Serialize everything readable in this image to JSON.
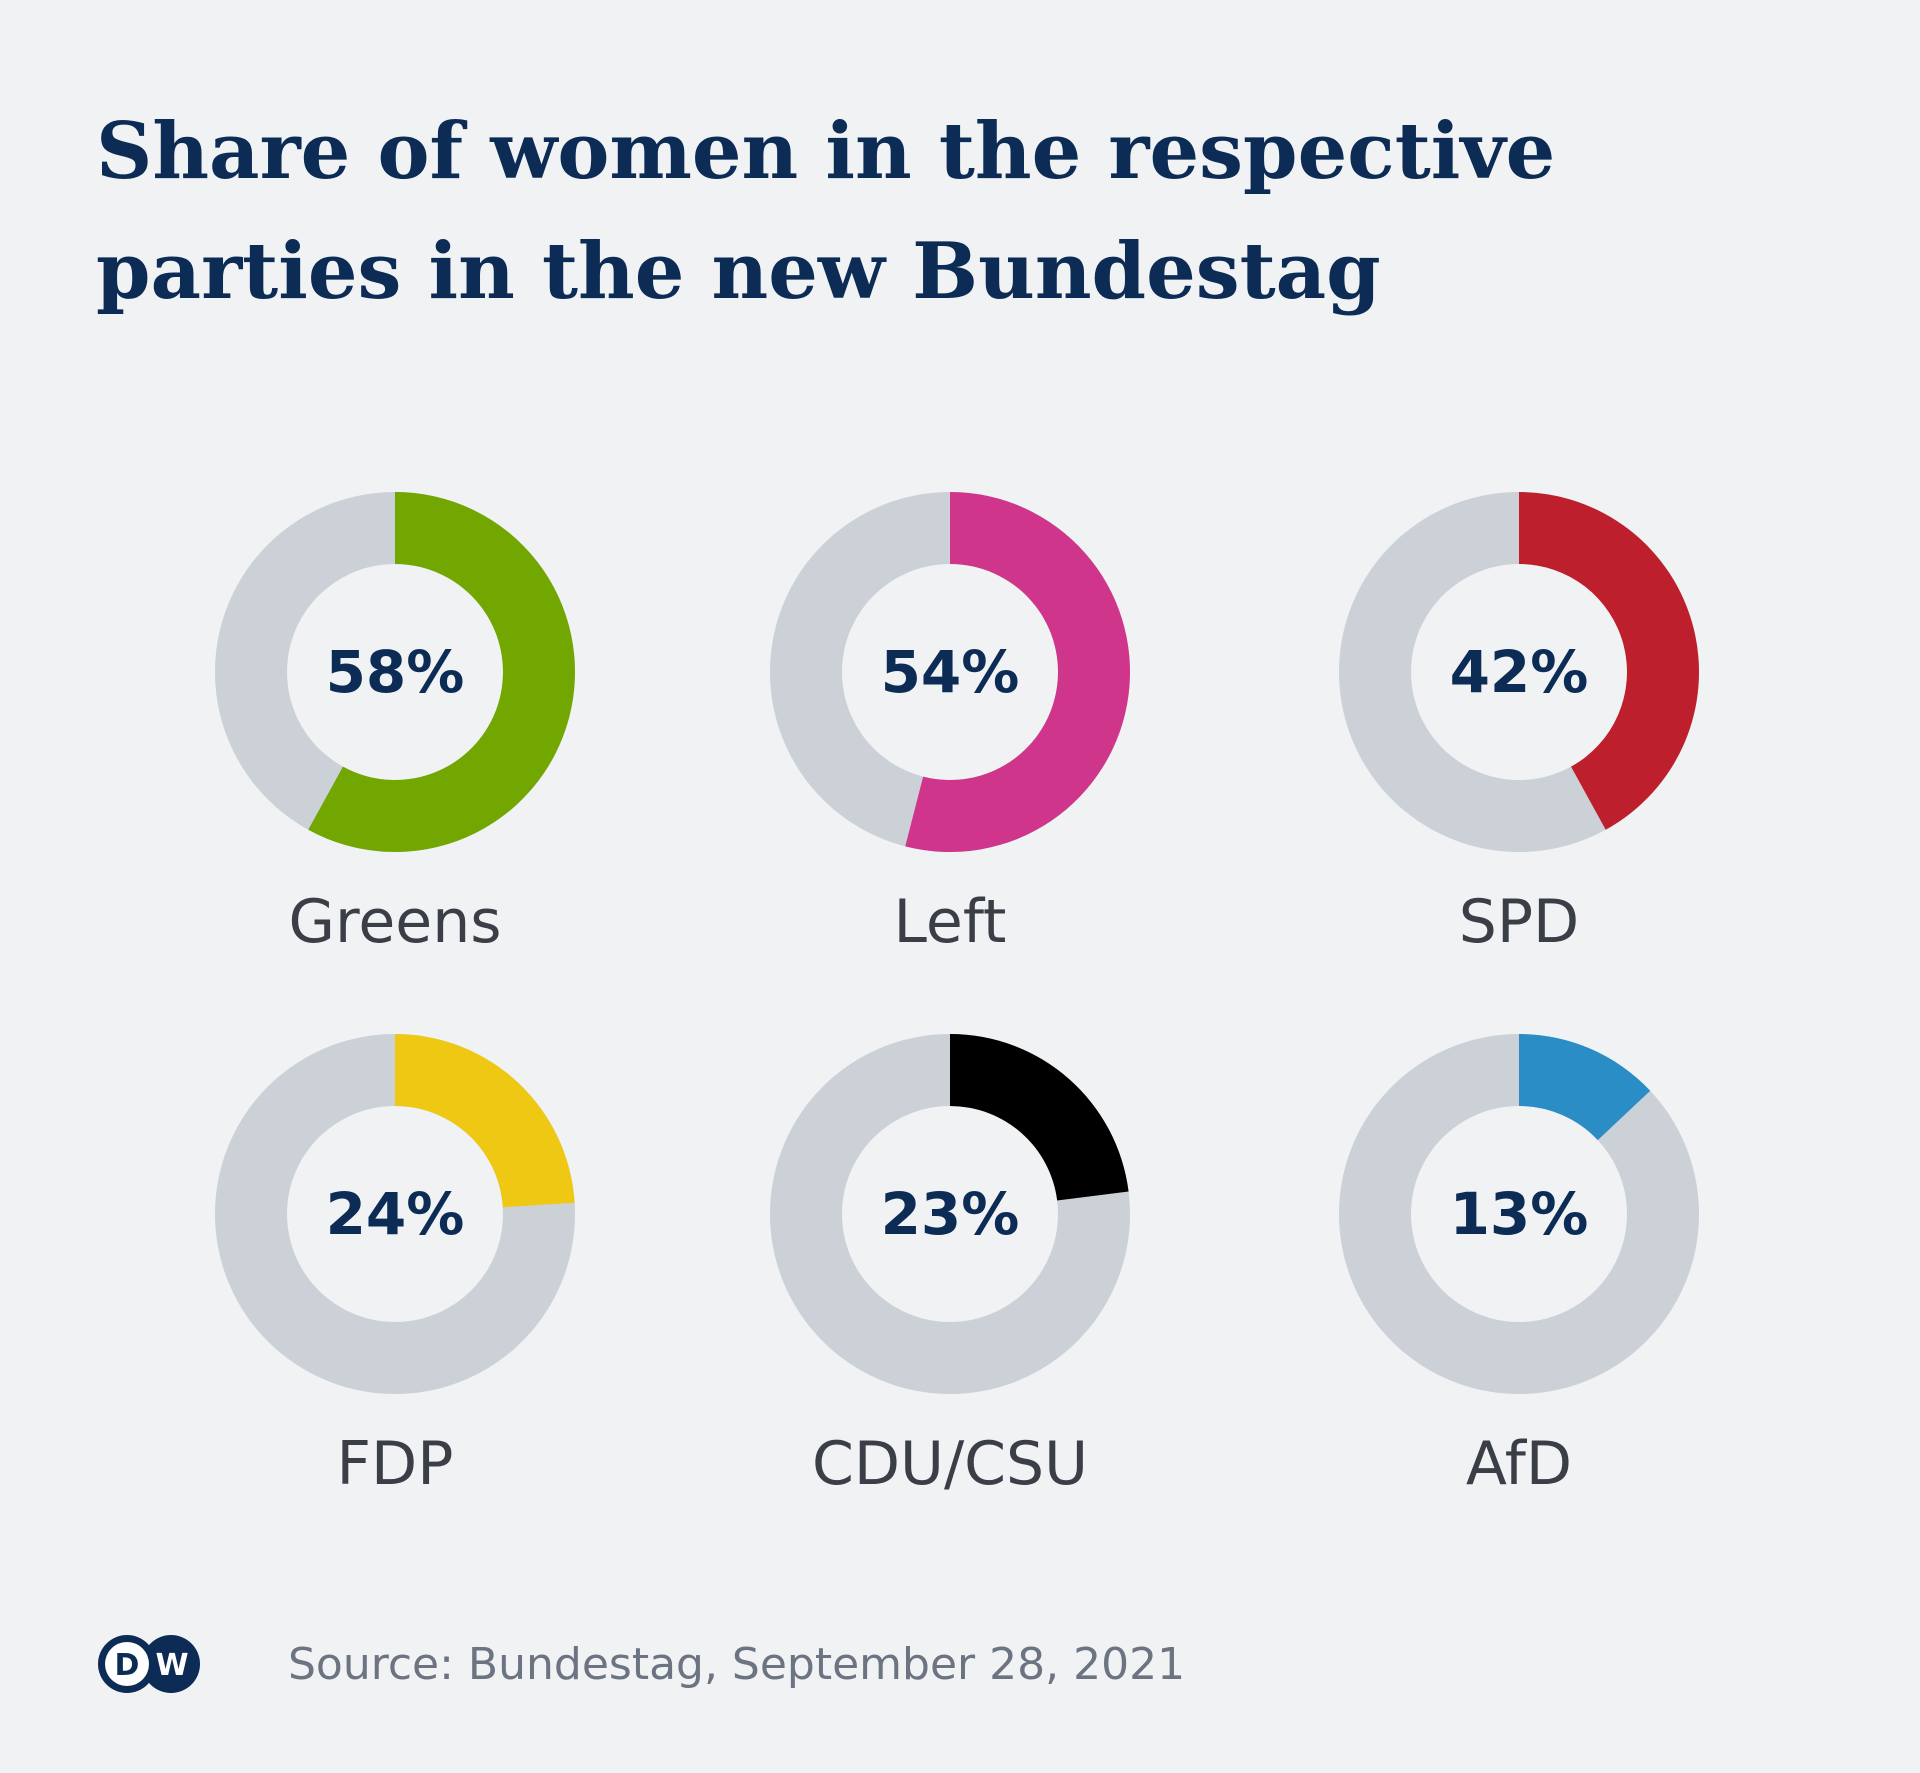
{
  "title": "Share of women in the respective parties in the new Bundestag",
  "source": "Source: Bundestag, September 28, 2021",
  "logo": {
    "text": "DW",
    "name": "dw-logo"
  },
  "colors": {
    "background": "#f0f2f4",
    "track": "#cbd1d7",
    "text_dark": "#0c2b55",
    "label": "#3a3f47"
  },
  "chart_data": {
    "type": "pie",
    "variant": "donut",
    "title": "Share of women in the respective parties in the new Bundestag",
    "unit": "%",
    "categories": [
      "Greens",
      "Left",
      "SPD",
      "FDP",
      "CDU/CSU",
      "AfD"
    ],
    "values": [
      58,
      54,
      42,
      24,
      23,
      13
    ],
    "labels": [
      "58%",
      "54%",
      "42%",
      "24%",
      "23%",
      "13%"
    ],
    "colors": [
      "#72a600",
      "#cf368b",
      "#bd202c",
      "#efc814",
      "#000000",
      "#2a8dc6"
    ]
  }
}
